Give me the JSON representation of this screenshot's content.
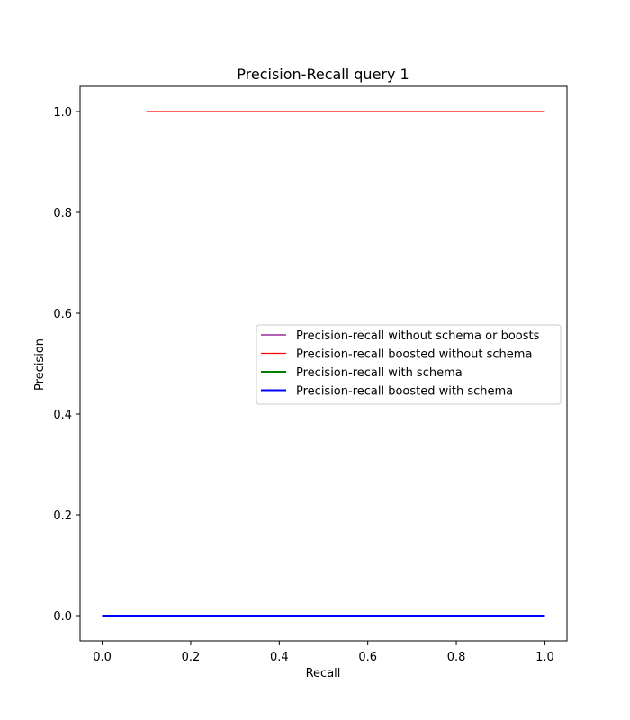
{
  "chart_data": {
    "type": "line",
    "title": "Precision-Recall query 1",
    "xlabel": "Recall",
    "ylabel": "Precision",
    "xlim": [
      -0.05,
      1.05
    ],
    "ylim": [
      -0.05,
      1.05
    ],
    "xticks": [
      0.0,
      0.2,
      0.4,
      0.6,
      0.8,
      1.0
    ],
    "xtick_labels": [
      "0.0",
      "0.2",
      "0.4",
      "0.6",
      "0.8",
      "1.0"
    ],
    "yticks": [
      0.0,
      0.2,
      0.4,
      0.6,
      0.8,
      1.0
    ],
    "ytick_labels": [
      "0.0",
      "0.2",
      "0.4",
      "0.6",
      "0.8",
      "1.0"
    ],
    "grid": false,
    "legend_placement": "center-right",
    "series": [
      {
        "name": "Precision-recall without schema or boosts",
        "color": "#800080",
        "x": [
          0.0,
          1.0
        ],
        "y": [
          0.0,
          0.0
        ]
      },
      {
        "name": "Precision-recall boosted without schema",
        "color": "#ff0000",
        "x": [
          0.1,
          1.0
        ],
        "y": [
          1.0,
          1.0
        ]
      },
      {
        "name": "Precision-recall with schema",
        "color": "#008000",
        "x": [
          0.0,
          1.0
        ],
        "y": [
          0.0,
          0.0
        ]
      },
      {
        "name": "Precision-recall boosted with schema",
        "color": "#0000ff",
        "x": [
          0.0,
          1.0
        ],
        "y": [
          0.0,
          0.0
        ]
      }
    ]
  }
}
